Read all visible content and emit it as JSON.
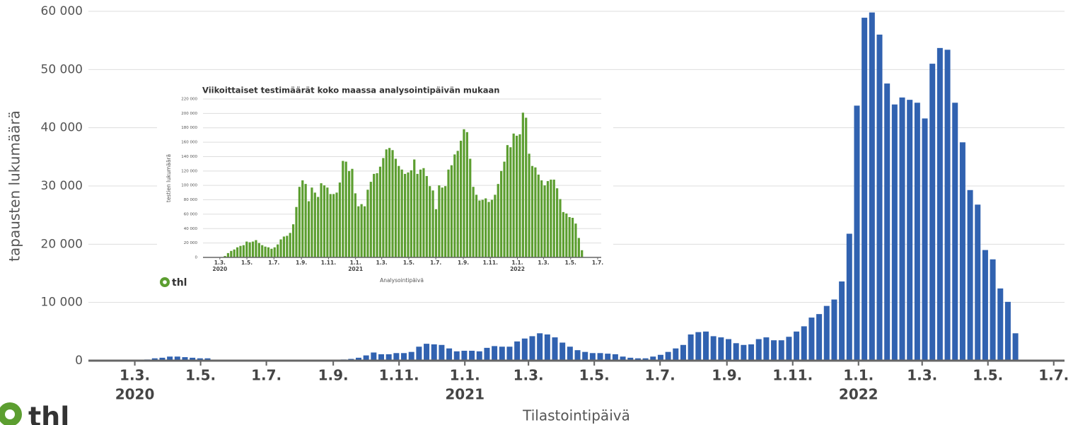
{
  "chart_data": [
    {
      "type": "bar",
      "xlabel": "Tilastointipäivä",
      "ylabel": "tapausten lukumäärä",
      "logo": "thl",
      "color": "#3162b0",
      "grid": true,
      "x": [
        "2020-03-02",
        "2020-03-09",
        "2020-03-16",
        "2020-03-23",
        "2020-03-30",
        "2020-04-06",
        "2020-04-13",
        "2020-04-20",
        "2020-04-27",
        "2020-05-04",
        "2020-05-11",
        "2020-05-18",
        "2020-05-25",
        "2020-06-01",
        "2020-06-08",
        "2020-06-15",
        "2020-06-22",
        "2020-06-29",
        "2020-07-06",
        "2020-07-13",
        "2020-07-20",
        "2020-07-27",
        "2020-08-03",
        "2020-08-10",
        "2020-08-17",
        "2020-08-24",
        "2020-08-31",
        "2020-09-07",
        "2020-09-14",
        "2020-09-21",
        "2020-09-28",
        "2020-10-05",
        "2020-10-12",
        "2020-10-19",
        "2020-10-26",
        "2020-11-02",
        "2020-11-09",
        "2020-11-16",
        "2020-11-23",
        "2020-11-30",
        "2020-12-07",
        "2020-12-14",
        "2020-12-21",
        "2020-12-28",
        "2021-01-04",
        "2021-01-11",
        "2021-01-18",
        "2021-01-25",
        "2021-02-01",
        "2021-02-08",
        "2021-02-15",
        "2021-02-22",
        "2021-03-01",
        "2021-03-08",
        "2021-03-15",
        "2021-03-22",
        "2021-03-29",
        "2021-04-05",
        "2021-04-12",
        "2021-04-19",
        "2021-04-26",
        "2021-05-03",
        "2021-05-10",
        "2021-05-17",
        "2021-05-24",
        "2021-05-31",
        "2021-06-07",
        "2021-06-14",
        "2021-06-21",
        "2021-06-28",
        "2021-07-05",
        "2021-07-12",
        "2021-07-19",
        "2021-07-26",
        "2021-08-02",
        "2021-08-09",
        "2021-08-16",
        "2021-08-23",
        "2021-08-30",
        "2021-09-06",
        "2021-09-13",
        "2021-09-20",
        "2021-09-27",
        "2021-10-04",
        "2021-10-11",
        "2021-10-18",
        "2021-10-25",
        "2021-11-01",
        "2021-11-08",
        "2021-11-15",
        "2021-11-22",
        "2021-11-29",
        "2021-12-06",
        "2021-12-13",
        "2021-12-20",
        "2021-12-27",
        "2022-01-03",
        "2022-01-10",
        "2022-01-17",
        "2022-01-24",
        "2022-01-31",
        "2022-02-07",
        "2022-02-14",
        "2022-02-21",
        "2022-02-28",
        "2022-03-07",
        "2022-03-14",
        "2022-03-21",
        "2022-03-28",
        "2022-04-04",
        "2022-04-11",
        "2022-04-18",
        "2022-04-25",
        "2022-05-02",
        "2022-05-09",
        "2022-05-16",
        "2022-05-23"
      ],
      "values": [
        100,
        200,
        400,
        500,
        700,
        700,
        600,
        500,
        400,
        400,
        150,
        150,
        100,
        100,
        100,
        100,
        100,
        100,
        100,
        100,
        100,
        100,
        100,
        150,
        150,
        150,
        150,
        200,
        300,
        500,
        900,
        1400,
        1100,
        1100,
        1300,
        1300,
        1500,
        2400,
        2900,
        2800,
        2700,
        2100,
        1600,
        1700,
        1700,
        1600,
        2200,
        2500,
        2400,
        2400,
        3300,
        3800,
        4200,
        4700,
        4500,
        4000,
        3100,
        2400,
        1800,
        1500,
        1300,
        1300,
        1200,
        1100,
        700,
        500,
        400,
        400,
        700,
        1000,
        1500,
        2100,
        2700,
        4500,
        4900,
        5000,
        4200,
        4000,
        3700,
        3000,
        2700,
        2800,
        3700,
        4000,
        3500,
        3500,
        4100,
        5000,
        5900,
        7400,
        8000,
        9400,
        10500,
        13600,
        21800,
        43800,
        58900,
        59800,
        56000,
        47600,
        44000,
        45200,
        44800,
        44300,
        41600,
        51000,
        53700,
        53400,
        44300,
        37500,
        29300,
        26800,
        19000,
        17400,
        12400,
        10100,
        4700
      ],
      "xlim": [
        "2020-01-18",
        "2022-07-11"
      ],
      "xticks": [
        {
          "value": "2020-03-01",
          "label": "1.3."
        },
        {
          "value": "2020-05-01",
          "label": "1.5."
        },
        {
          "value": "2020-07-01",
          "label": "1.7."
        },
        {
          "value": "2020-09-01",
          "label": "1.9."
        },
        {
          "value": "2020-11-01",
          "label": "1.11."
        },
        {
          "value": "2021-01-01",
          "label": "1.1."
        },
        {
          "value": "2021-03-01",
          "label": "1.3."
        },
        {
          "value": "2021-05-01",
          "label": "1.5."
        },
        {
          "value": "2021-07-01",
          "label": "1.7."
        },
        {
          "value": "2021-09-01",
          "label": "1.9."
        },
        {
          "value": "2021-11-01",
          "label": "1.11."
        },
        {
          "value": "2022-01-01",
          "label": "1.1."
        },
        {
          "value": "2022-03-01",
          "label": "1.3."
        },
        {
          "value": "2022-05-01",
          "label": "1.5."
        },
        {
          "value": "2022-07-01",
          "label": "1.7."
        }
      ],
      "year_labels": [
        {
          "value": "2020-03-01",
          "label": "2020"
        },
        {
          "value": "2021-01-01",
          "label": "2021"
        },
        {
          "value": "2022-01-01",
          "label": "2022"
        }
      ],
      "ylim": [
        0,
        60000
      ],
      "yticks": [
        0,
        {
          "value": 10000,
          "label": "10 000"
        },
        {
          "value": 20000,
          "label": "20 000"
        },
        {
          "value": 30000,
          "label": "30 000"
        },
        {
          "value": 40000,
          "label": "40 000"
        },
        {
          "value": 50000,
          "label": "50 000"
        },
        {
          "value": 60000,
          "label": "60 000"
        }
      ]
    },
    {
      "type": "bar",
      "title": "Viikoittaiset testimäärät koko maassa analysointipäivän mukaan",
      "xlabel": "Analysointipäivä",
      "ylabel": "testien lukumäärä",
      "logo": "thl",
      "color": "#5c9e30",
      "grid": true,
      "x": [
        "2020-03-02",
        "2020-03-09",
        "2020-03-16",
        "2020-03-23",
        "2020-03-30",
        "2020-04-06",
        "2020-04-13",
        "2020-04-20",
        "2020-04-27",
        "2020-05-04",
        "2020-05-11",
        "2020-05-18",
        "2020-05-25",
        "2020-06-01",
        "2020-06-08",
        "2020-06-15",
        "2020-06-22",
        "2020-06-29",
        "2020-07-06",
        "2020-07-13",
        "2020-07-20",
        "2020-07-27",
        "2020-08-03",
        "2020-08-10",
        "2020-08-17",
        "2020-08-24",
        "2020-08-31",
        "2020-09-07",
        "2020-09-14",
        "2020-09-21",
        "2020-09-28",
        "2020-10-05",
        "2020-10-12",
        "2020-10-19",
        "2020-10-26",
        "2020-11-02",
        "2020-11-09",
        "2020-11-16",
        "2020-11-23",
        "2020-11-30",
        "2020-12-07",
        "2020-12-14",
        "2020-12-21",
        "2020-12-28",
        "2021-01-04",
        "2021-01-11",
        "2021-01-18",
        "2021-01-25",
        "2021-02-01",
        "2021-02-08",
        "2021-02-15",
        "2021-02-22",
        "2021-03-01",
        "2021-03-08",
        "2021-03-15",
        "2021-03-22",
        "2021-03-29",
        "2021-04-05",
        "2021-04-12",
        "2021-04-19",
        "2021-04-26",
        "2021-05-03",
        "2021-05-10",
        "2021-05-17",
        "2021-05-24",
        "2021-05-31",
        "2021-06-07",
        "2021-06-14",
        "2021-06-21",
        "2021-06-28",
        "2021-07-05",
        "2021-07-12",
        "2021-07-19",
        "2021-07-26",
        "2021-08-02",
        "2021-08-09",
        "2021-08-16",
        "2021-08-23",
        "2021-08-30",
        "2021-09-06",
        "2021-09-13",
        "2021-09-20",
        "2021-09-27",
        "2021-10-04",
        "2021-10-11",
        "2021-10-18",
        "2021-10-25",
        "2021-11-01",
        "2021-11-08",
        "2021-11-15",
        "2021-11-22",
        "2021-11-29",
        "2021-12-06",
        "2021-12-13",
        "2021-12-20",
        "2021-12-27",
        "2022-01-03",
        "2022-01-10",
        "2022-01-17",
        "2022-01-24",
        "2022-01-31",
        "2022-02-07",
        "2022-02-14",
        "2022-02-21",
        "2022-02-28",
        "2022-03-07",
        "2022-03-14",
        "2022-03-21",
        "2022-03-28",
        "2022-04-04",
        "2022-04-11",
        "2022-04-18",
        "2022-04-25",
        "2022-05-02",
        "2022-05-09",
        "2022-05-16",
        "2022-05-23"
      ],
      "values": [
        0,
        2000,
        6000,
        9000,
        11000,
        14000,
        16000,
        17000,
        22000,
        21000,
        22000,
        24000,
        20000,
        17000,
        15000,
        14000,
        12000,
        14000,
        18000,
        25000,
        29000,
        30000,
        34000,
        46000,
        70000,
        98000,
        107000,
        102000,
        78000,
        97000,
        90000,
        84000,
        103000,
        100000,
        97000,
        88000,
        88000,
        90000,
        104000,
        134000,
        133000,
        120000,
        123000,
        89000,
        71000,
        74000,
        71000,
        94000,
        105000,
        116000,
        117000,
        126000,
        138000,
        150000,
        152000,
        149000,
        137000,
        127000,
        122000,
        116000,
        118000,
        121000,
        136000,
        116000,
        122000,
        124000,
        113000,
        99000,
        93000,
        67000,
        100000,
        97000,
        99000,
        122000,
        128000,
        143000,
        148000,
        162000,
        178000,
        174000,
        137000,
        98000,
        87000,
        79000,
        80000,
        82000,
        77000,
        80000,
        87000,
        102000,
        120000,
        133000,
        156000,
        153000,
        172000,
        169000,
        171000,
        201000,
        194000,
        144000,
        127000,
        125000,
        115000,
        107000,
        100000,
        106000,
        108000,
        108000,
        96000,
        81000,
        63000,
        61000,
        56000,
        55000,
        47000,
        27000,
        10000
      ],
      "xlim": [
        "2020-01-23",
        "2022-07-09"
      ],
      "xticks": [
        {
          "value": "2020-03-01",
          "label": "1.3."
        },
        {
          "value": "2020-05-01",
          "label": "1.5."
        },
        {
          "value": "2020-07-01",
          "label": "1.7."
        },
        {
          "value": "2020-09-01",
          "label": "1.9."
        },
        {
          "value": "2020-11-01",
          "label": "1.11."
        },
        {
          "value": "2021-01-01",
          "label": "1.1."
        },
        {
          "value": "2021-03-01",
          "label": "1.3."
        },
        {
          "value": "2021-05-01",
          "label": "1.5."
        },
        {
          "value": "2021-07-01",
          "label": "1.7."
        },
        {
          "value": "2021-09-01",
          "label": "1.9."
        },
        {
          "value": "2021-11-01",
          "label": "1.11."
        },
        {
          "value": "2022-01-01",
          "label": "1.1."
        },
        {
          "value": "2022-03-01",
          "label": "1.3."
        },
        {
          "value": "2022-05-01",
          "label": "1.5."
        },
        {
          "value": "2022-07-01",
          "label": "1.7."
        }
      ],
      "year_labels": [
        {
          "value": "2020-03-01",
          "label": "2020"
        },
        {
          "value": "2021-01-01",
          "label": "2021"
        },
        {
          "value": "2022-01-01",
          "label": "2022"
        }
      ],
      "ylim": [
        0,
        220000
      ],
      "yticks": [
        0,
        {
          "value": 20000,
          "label": "20 000"
        },
        {
          "value": 40000,
          "label": "40 000"
        },
        {
          "value": 60000,
          "label": "60 000"
        },
        {
          "value": 80000,
          "label": "80 000"
        },
        {
          "value": 100000,
          "label": "100 000"
        },
        {
          "value": 120000,
          "label": "120 000"
        },
        {
          "value": 140000,
          "label": "140 000"
        },
        {
          "value": 160000,
          "label": "160 000"
        },
        {
          "value": 180000,
          "label": "180 000"
        },
        {
          "value": 200000,
          "label": "200 000"
        },
        {
          "value": 220000,
          "label": "220 000"
        }
      ]
    }
  ]
}
